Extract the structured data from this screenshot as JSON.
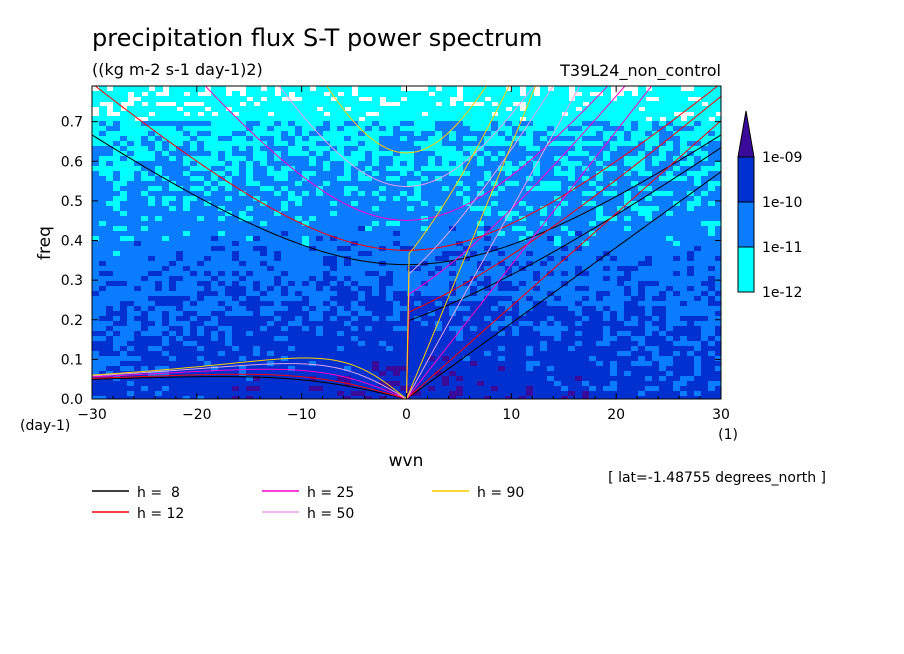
{
  "chart_data": {
    "type": "heatmap",
    "title": "precipitation flux S-T power spectrum",
    "subtitle": "((kg m-2 s-1 day-1)2)",
    "run_label": "T39L24_non_control",
    "xlabel": "wvn",
    "ylabel": "freq",
    "x_unit": "(1)",
    "y_unit": "(day-1)",
    "xlim": [
      -30,
      30
    ],
    "ylim": [
      0,
      0.79
    ],
    "x_ticks": [
      -30,
      -20,
      -10,
      0,
      10,
      20,
      30
    ],
    "x_tick_labels": [
      "−30",
      "−20",
      "−10",
      "0",
      "10",
      "20",
      "30"
    ],
    "y_ticks": [
      0,
      0.1,
      0.2,
      0.3,
      0.4,
      0.5,
      0.6,
      0.7
    ],
    "y_tick_labels": [
      "0.0",
      "0.1",
      "0.2",
      "0.3",
      "0.4",
      "0.5",
      "0.6",
      "0.7"
    ],
    "colorbar": {
      "levels": [
        "1e-12",
        "1e-11",
        "1e-10",
        "1e-09"
      ],
      "colors": [
        "#00ffff",
        "#0a7cff",
        "#0030d0",
        "#3a0a9a"
      ],
      "below_color": "#ffffff"
    },
    "field_description": {
      "dominant_low_freq": "1e-11 to 1e-10",
      "dominant_high_freq": "1e-12 to 1e-11"
    },
    "dispersion_curves": [
      {
        "h": 8,
        "label": "h =  8",
        "color": "#000000"
      },
      {
        "h": 12,
        "label": "h = 12",
        "color": "#ff0000"
      },
      {
        "h": 25,
        "label": "h = 25",
        "color": "#ff00cc"
      },
      {
        "h": 50,
        "label": "h = 50",
        "color": "#e8a0e8"
      },
      {
        "h": 90,
        "label": "h = 90",
        "color": "#ffcc00"
      }
    ],
    "annotation": "[ lat=-1.48755 degrees_north ]"
  }
}
